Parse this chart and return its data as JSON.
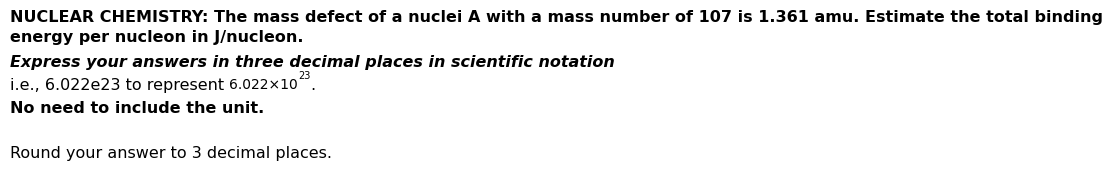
{
  "bg_color": "#ffffff",
  "line1": "NUCLEAR CHEMISTRY: The mass defect of a nuclei A with a mass number of 107 is 1.361 amu. Estimate the total binding",
  "line2": "energy per nucleon in J/nucleon.",
  "line3_italic": "Express your answers in three decimal places in scientific notation",
  "line4_prefix": "i.e., 6.022e23 to represent ",
  "line4_math_base": "6.022×10",
  "line4_math_exp": "23",
  "line4_suffix": ".",
  "line5_bold": "No need to include the unit.",
  "line6": "Round your answer to 3 decimal places.",
  "font_size_main": 11.5,
  "text_color": "#000000"
}
